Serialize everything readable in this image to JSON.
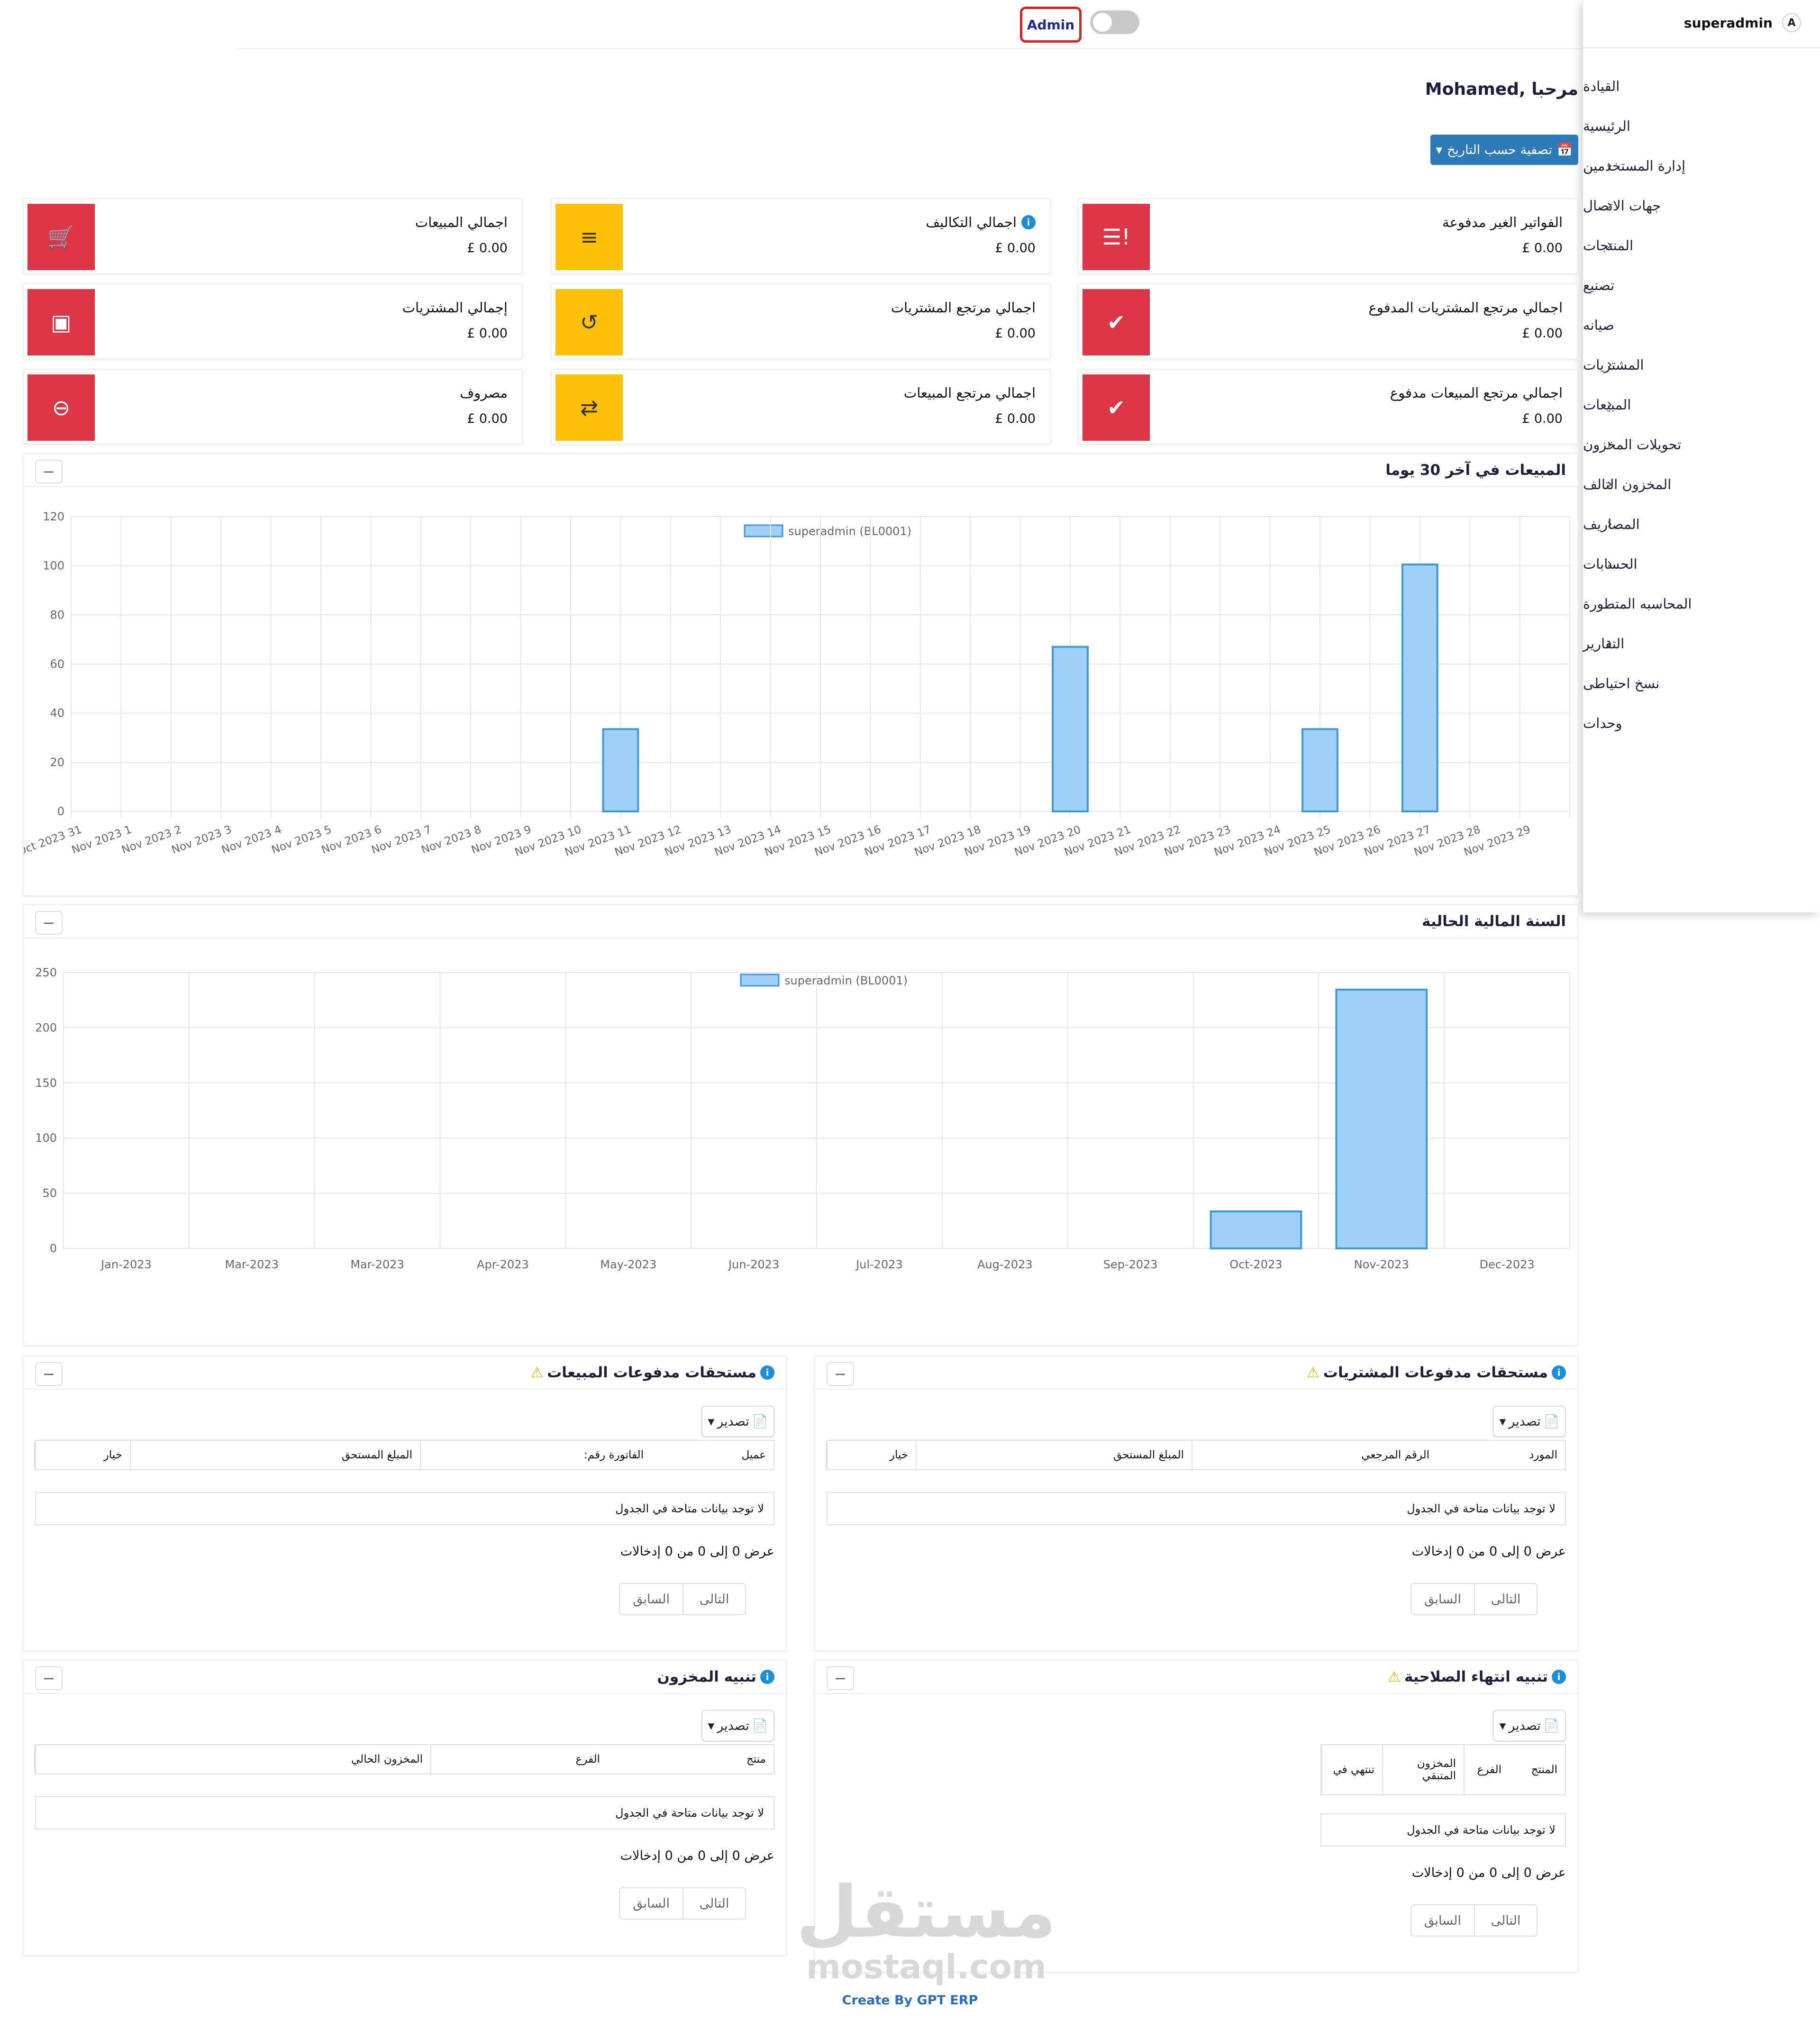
{
  "topbar": {
    "admin_label": "Admin"
  },
  "sidebar": {
    "username": "superadmin",
    "user_icon": "user-badge-icon",
    "items": [
      {
        "label": "القيادة",
        "has_children": false
      },
      {
        "label": "الرئيسية",
        "has_children": false
      },
      {
        "label": "إدارة المستخدمين",
        "has_children": true
      },
      {
        "label": "جهات الاتصال",
        "has_children": true
      },
      {
        "label": "المنتجات",
        "has_children": true
      },
      {
        "label": "تصنيع",
        "has_children": false
      },
      {
        "label": "صيانه",
        "has_children": false
      },
      {
        "label": "المشتريات",
        "has_children": true
      },
      {
        "label": "المبيعات",
        "has_children": true
      },
      {
        "label": "تحويلات المخزون",
        "has_children": true
      },
      {
        "label": "المخزون التالف",
        "has_children": true
      },
      {
        "label": "المصاريف",
        "has_children": true
      },
      {
        "label": "الحسابات",
        "has_children": true
      },
      {
        "label": "المحاسبه المتطورة",
        "has_children": false
      },
      {
        "label": "التقارير",
        "has_children": true
      },
      {
        "label": "نسخ احتياطى",
        "has_children": false
      },
      {
        "label": "وحدات",
        "has_children": false
      }
    ]
  },
  "header": {
    "welcome": "Mohamed, مرحبا",
    "filter_button": "تصفية حسب التاريخ"
  },
  "cards": [
    {
      "label": "الفواتير الغير مدفوعة",
      "value": "£ 0.00",
      "color": "#dc3545",
      "icon": "invoice-alert-icon",
      "info": false
    },
    {
      "label": "اجمالي التكاليف",
      "value": "£ 0.00",
      "color": "#ffc107",
      "icon": "list-icon",
      "info": true
    },
    {
      "label": "اجمالي المبيعات",
      "value": "£ 0.00",
      "color": "#dc3545",
      "icon": "cart-icon",
      "info": false
    },
    {
      "label": "اجمالي مرتجع المشتريات المدفوع",
      "value": "£ 0.00",
      "color": "#dc3545",
      "icon": "check-icon",
      "info": false
    },
    {
      "label": "اجمالي مرتجع المشتريات",
      "value": "£ 0.00",
      "color": "#ffc107",
      "icon": "undo-icon",
      "info": false
    },
    {
      "label": "إجمالي المشتريات",
      "value": "£ 0.00",
      "color": "#dc3545",
      "icon": "money-icon",
      "info": false
    },
    {
      "label": "اجمالي مرتجع المبيعات مدفوع",
      "value": "£ 0.00",
      "color": "#dc3545",
      "icon": "check-icon",
      "info": false
    },
    {
      "label": "اجمالي مرتجع المبيعات",
      "value": "£ 0.00",
      "color": "#ffc107",
      "icon": "exchange-icon",
      "info": false
    },
    {
      "label": "مصروف",
      "value": "£ 0.00",
      "color": "#dc3545",
      "icon": "minus-circle-icon",
      "info": false
    }
  ],
  "chart_data": [
    {
      "type": "bar",
      "title": "المبيعات في آخر 30 يوما",
      "legend": "superadmin (BL0001)",
      "legend_position": "top-center",
      "grid": true,
      "categories": [
        "Oct 2023 31",
        "Nov 2023 1",
        "Nov 2023 2",
        "Nov 2023 3",
        "Nov 2023 4",
        "Nov 2023 5",
        "Nov 2023 6",
        "Nov 2023 7",
        "Nov 2023 8",
        "Nov 2023 9",
        "Nov 2023 10",
        "Nov 2023 11",
        "Nov 2023 12",
        "Nov 2023 13",
        "Nov 2023 14",
        "Nov 2023 15",
        "Nov 2023 16",
        "Nov 2023 17",
        "Nov 2023 18",
        "Nov 2023 19",
        "Nov 2023 20",
        "Nov 2023 21",
        "Nov 2023 22",
        "Nov 2023 23",
        "Nov 2023 24",
        "Nov 2023 25",
        "Nov 2023 26",
        "Nov 2023 27",
        "Nov 2023 28",
        "Nov 2023 29"
      ],
      "series": [
        {
          "name": "superadmin (BL0001)",
          "values": [
            0,
            0,
            0,
            0,
            0,
            0,
            0,
            0,
            0,
            0,
            0,
            33.5,
            0,
            0,
            0,
            0,
            0,
            0,
            0,
            0,
            67,
            0,
            0,
            0,
            0,
            33.5,
            0,
            100.5,
            0,
            0
          ]
        }
      ],
      "ylim": [
        0,
        120
      ],
      "yticks": [
        0,
        20,
        40,
        60,
        80,
        100,
        120
      ]
    },
    {
      "type": "bar",
      "title": "السنة المالية الحالية",
      "legend": "superadmin (BL0001)",
      "legend_position": "top-center",
      "grid": true,
      "categories": [
        "Jan-2023",
        "Mar-2023",
        "Mar-2023",
        "Apr-2023",
        "May-2023",
        "Jun-2023",
        "Jul-2023",
        "Aug-2023",
        "Sep-2023",
        "Oct-2023",
        "Nov-2023",
        "Dec-2023"
      ],
      "series": [
        {
          "name": "superadmin (BL0001)",
          "values": [
            0,
            0,
            0,
            0,
            0,
            0,
            0,
            0,
            0,
            33.5,
            234.5,
            0
          ]
        }
      ],
      "ylim": [
        0,
        250
      ],
      "yticks": [
        0,
        50,
        100,
        150,
        200,
        250
      ]
    }
  ],
  "chart_colors": {
    "bar_fill": "#9fd0f5",
    "bar_stroke": "#3c97dd",
    "grid": "#e6e6e6"
  },
  "tables": {
    "export_label": "تصدير",
    "no_data": "لا توجد بيانات متاحة في الجدول",
    "showing": "عرض 0 إلى 0 من 0 إدخالات",
    "next": "التالى",
    "prev": "السابق",
    "purchase_dues": {
      "title": "مستحقات مدفوعات المشتريات",
      "columns": [
        "المورد",
        "الرقم المرجعي",
        "المبلغ المستحق",
        "خيار"
      ]
    },
    "sales_dues": {
      "title": "مستحقات مدفوعات المبيعات",
      "columns": [
        "عميل",
        "الفاتورة رقم:",
        "المبلغ المستحق",
        "خيار"
      ]
    },
    "expiry_alert": {
      "title": "تنبيه انتهاء الصلاحية",
      "columns": [
        "المنتج",
        "الفرع",
        "المخزون المتبقي",
        "تنتهي في"
      ]
    },
    "stock_alert": {
      "title": "تنبيه المخزون",
      "columns": [
        "منتج",
        "الفرع",
        "المخزون الحالي"
      ]
    }
  },
  "watermark": {
    "arabic": "مستقل",
    "latin": "mostaql.com"
  },
  "footer": "Create By GPT ERP"
}
